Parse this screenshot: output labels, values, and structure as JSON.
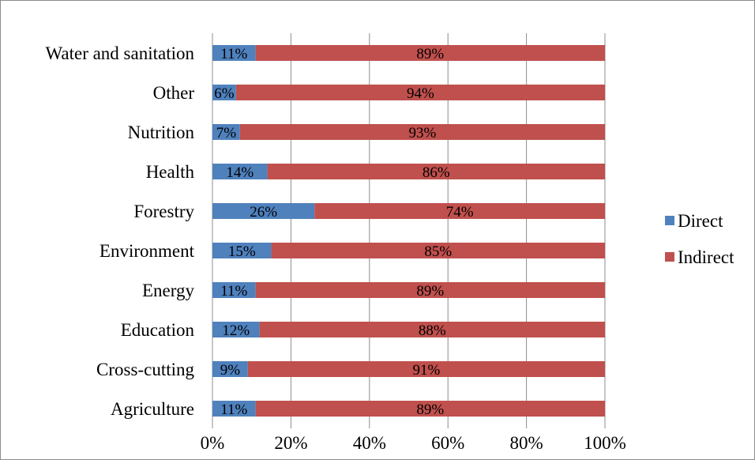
{
  "chart_data": {
    "type": "bar",
    "orientation": "horizontal",
    "stacked": "percent",
    "categories": [
      "Water and sanitation",
      "Other",
      "Nutrition",
      "Health",
      "Forestry",
      "Environment",
      "Energy",
      "Education",
      "Cross-cutting",
      "Agriculture"
    ],
    "series": [
      {
        "name": "Direct",
        "color": "#4f81bd",
        "values": [
          11,
          6,
          7,
          14,
          26,
          15,
          11,
          12,
          9,
          11
        ],
        "labels": [
          "11%",
          "6%",
          "7%",
          "14%",
          "26%",
          "15%",
          "11%",
          "12%",
          "9%",
          "11%"
        ]
      },
      {
        "name": "Indirect",
        "color": "#c0504d",
        "values": [
          89,
          94,
          93,
          86,
          74,
          85,
          89,
          88,
          91,
          89
        ],
        "labels": [
          "89%",
          "94%",
          "93%",
          "86%",
          "74%",
          "85%",
          "89%",
          "88%",
          "91%",
          "89%"
        ]
      }
    ],
    "x_ticks": [
      "0%",
      "20%",
      "40%",
      "60%",
      "80%",
      "100%"
    ],
    "xlim": [
      0,
      100
    ],
    "grid": "vertical",
    "legend_position": "right"
  }
}
